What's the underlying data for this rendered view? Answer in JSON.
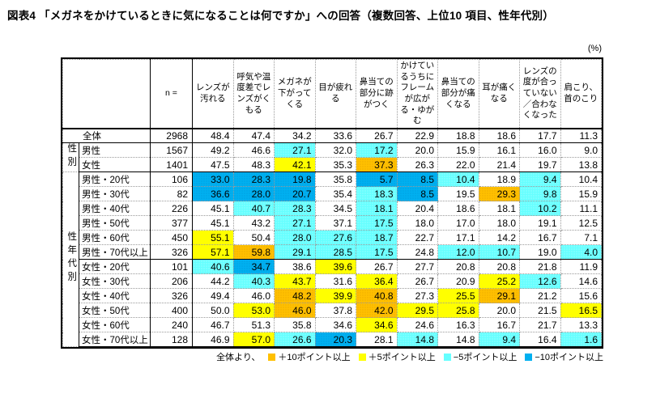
{
  "title": "図表4 「メガネをかけているときに気になることは何ですか」への回答（複数回答、上位10 項目、性年代別）",
  "unit_label": "(%)",
  "chart_data": {
    "type": "table",
    "n_header": "n =",
    "columns": [
      "レンズが汚れる",
      "呼気や温度差でレンズがくもる",
      "メガネが下がってくる",
      "目が疲れる",
      "鼻当ての部分に跡がつく",
      "かけているうちにフレームが広がる・ゆがむ",
      "鼻当ての部分が痛くなる",
      "耳が痛くなる",
      "レンズの度が合っていない／合わなくなった",
      "肩こり、首のこり"
    ],
    "row_groups": [
      {
        "label": "",
        "rows": [
          {
            "label": "全体",
            "n": "2968",
            "values": [
              "48.4",
              "47.4",
              "34.2",
              "33.6",
              "26.7",
              "22.9",
              "18.8",
              "18.6",
              "17.7",
              "11.3"
            ],
            "flags": [
              "",
              "",
              "",
              "",
              "",
              "",
              "",
              "",
              "",
              ""
            ]
          }
        ]
      },
      {
        "label": "性別",
        "rows": [
          {
            "label": "男性",
            "n": "1567",
            "values": [
              "49.2",
              "46.6",
              "27.1",
              "32.0",
              "17.2",
              "20.0",
              "15.9",
              "16.1",
              "16.0",
              "9.0"
            ],
            "flags": [
              "",
              "",
              "m5",
              "",
              "m5",
              "",
              "",
              "",
              "",
              ""
            ]
          },
          {
            "label": "女性",
            "n": "1401",
            "values": [
              "47.5",
              "48.3",
              "42.1",
              "35.3",
              "37.3",
              "26.3",
              "22.0",
              "21.4",
              "19.7",
              "13.8"
            ],
            "flags": [
              "",
              "",
              "p5",
              "",
              "p10",
              "",
              "",
              "",
              "",
              ""
            ]
          }
        ]
      },
      {
        "label": "性年代別",
        "rows": [
          {
            "label": "男性・20代",
            "n": "106",
            "values": [
              "33.0",
              "28.3",
              "19.8",
              "35.8",
              "5.7",
              "8.5",
              "10.4",
              "18.9",
              "9.4",
              "10.4"
            ],
            "flags": [
              "m10",
              "m10",
              "m10",
              "",
              "m10",
              "m10",
              "m5",
              "",
              "m5",
              ""
            ]
          },
          {
            "label": "男性・30代",
            "n": "82",
            "values": [
              "36.6",
              "28.0",
              "20.7",
              "35.4",
              "18.3",
              "8.5",
              "19.5",
              "29.3",
              "9.8",
              "15.9"
            ],
            "flags": [
              "m10",
              "m10",
              "m10",
              "",
              "m5",
              "m10",
              "",
              "p10",
              "m5",
              ""
            ]
          },
          {
            "label": "男性・40代",
            "n": "226",
            "values": [
              "45.1",
              "40.7",
              "28.3",
              "34.5",
              "18.1",
              "20.4",
              "18.6",
              "18.1",
              "10.2",
              "11.1"
            ],
            "flags": [
              "",
              "m5",
              "m5",
              "",
              "m5",
              "",
              "",
              "",
              "m5",
              ""
            ]
          },
          {
            "label": "男性・50代",
            "n": "377",
            "values": [
              "45.1",
              "43.2",
              "27.1",
              "37.1",
              "17.5",
              "18.0",
              "17.0",
              "18.0",
              "19.1",
              "12.5"
            ],
            "flags": [
              "",
              "",
              "m5",
              "",
              "m5",
              "",
              "",
              "",
              "",
              ""
            ]
          },
          {
            "label": "男性・60代",
            "n": "450",
            "values": [
              "55.1",
              "50.4",
              "28.0",
              "27.6",
              "18.7",
              "22.7",
              "17.1",
              "14.2",
              "16.7",
              "7.1"
            ],
            "flags": [
              "p5",
              "",
              "m5",
              "m5",
              "m5",
              "",
              "",
              "",
              "",
              ""
            ]
          },
          {
            "label": "男性・70代以上",
            "n": "326",
            "values": [
              "57.1",
              "59.8",
              "29.1",
              "28.5",
              "17.5",
              "24.8",
              "12.0",
              "10.7",
              "19.0",
              "4.0"
            ],
            "flags": [
              "p5",
              "p10",
              "m5",
              "m5",
              "m5",
              "",
              "m5",
              "m5",
              "",
              "m5"
            ],
            "divider_after": true
          },
          {
            "label": "女性・20代",
            "n": "101",
            "values": [
              "40.6",
              "34.7",
              "38.6",
              "39.6",
              "26.7",
              "27.7",
              "20.8",
              "20.8",
              "21.8",
              "11.9"
            ],
            "flags": [
              "m5",
              "m10",
              "",
              "p5",
              "",
              "",
              "",
              "",
              "",
              ""
            ]
          },
          {
            "label": "女性・30代",
            "n": "206",
            "values": [
              "44.2",
              "40.3",
              "43.7",
              "31.6",
              "36.4",
              "26.7",
              "20.9",
              "25.2",
              "12.6",
              "14.6"
            ],
            "flags": [
              "",
              "m5",
              "p5",
              "",
              "p5",
              "",
              "",
              "p5",
              "m5",
              ""
            ]
          },
          {
            "label": "女性・40代",
            "n": "326",
            "values": [
              "49.4",
              "46.0",
              "48.2",
              "39.9",
              "40.8",
              "27.3",
              "25.5",
              "29.1",
              "21.2",
              "15.6"
            ],
            "flags": [
              "",
              "",
              "p10",
              "p5",
              "p10",
              "",
              "p5",
              "p10",
              "",
              ""
            ]
          },
          {
            "label": "女性・50代",
            "n": "400",
            "values": [
              "50.0",
              "53.0",
              "46.0",
              "37.8",
              "42.0",
              "29.5",
              "25.8",
              "20.0",
              "21.5",
              "16.5"
            ],
            "flags": [
              "",
              "p5",
              "p10",
              "",
              "p10",
              "p5",
              "p5",
              "",
              "",
              "p5"
            ]
          },
          {
            "label": "女性・60代",
            "n": "240",
            "values": [
              "46.7",
              "51.3",
              "35.8",
              "34.6",
              "34.6",
              "24.6",
              "16.3",
              "16.7",
              "21.7",
              "13.3"
            ],
            "flags": [
              "",
              "",
              "",
              "",
              "p5",
              "",
              "",
              "",
              "",
              ""
            ]
          },
          {
            "label": "女性・70代以上",
            "n": "128",
            "values": [
              "46.9",
              "57.0",
              "26.6",
              "20.3",
              "28.1",
              "14.8",
              "14.8",
              "9.4",
              "16.4",
              "1.6"
            ],
            "flags": [
              "",
              "p5",
              "m5",
              "m10",
              "",
              "m5",
              "",
              "m5",
              "",
              "m5"
            ]
          }
        ]
      }
    ],
    "highlight_colors": {
      "p10": "#FFC000",
      "p5": "#FFFF00",
      "m5": "#66FFFF",
      "m10": "#00B0F0"
    },
    "legend": {
      "prefix": "全体より、",
      "items": [
        {
          "key": "p10",
          "color": "#FFC000",
          "label": "＋10ポイント以上"
        },
        {
          "key": "p5",
          "color": "#FFFF00",
          "label": "＋5ポイント以上"
        },
        {
          "key": "m5",
          "color": "#66FFFF",
          "label": "−5ポイント以上"
        },
        {
          "key": "m10",
          "color": "#00B0F0",
          "label": "−10ポイント以上"
        }
      ]
    }
  }
}
